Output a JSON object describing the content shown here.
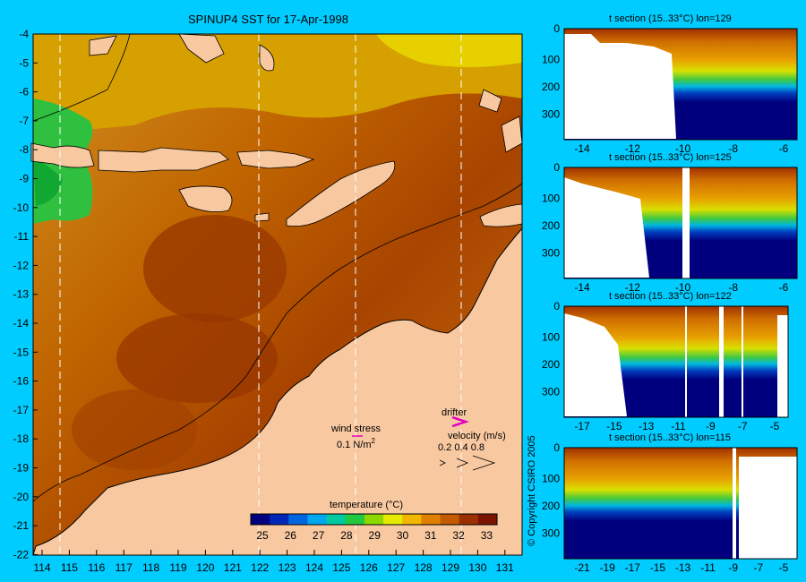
{
  "main_map": {
    "title": "SPINUP4 SST for 17-Apr-1998",
    "lat_ticks": [
      "-4",
      "-5",
      "-6",
      "-7",
      "-8",
      "-9",
      "-10",
      "-11",
      "-12",
      "-13",
      "-14",
      "-15",
      "-16",
      "-17",
      "-18",
      "-19",
      "-20",
      "-21",
      "-22"
    ],
    "lon_ticks": [
      "114",
      "115",
      "116",
      "117",
      "118",
      "119",
      "120",
      "121",
      "122",
      "123",
      "124",
      "125",
      "126",
      "127",
      "128",
      "129",
      "130",
      "131"
    ],
    "legend": {
      "wind_label": "wind stress",
      "wind_value": "0.1 N/m",
      "wind_exp": "2",
      "drifter_label": "drifter",
      "velocity_label": "velocity (m/s)",
      "velocity_values": "0.2  0.4  0.8"
    },
    "colorbar": {
      "label": "temperature (°C)",
      "ticks": [
        "25",
        "26",
        "27",
        "28",
        "29",
        "30",
        "31",
        "32",
        "33"
      ],
      "colors": [
        "#00007f",
        "#0026b8",
        "#0066e0",
        "#00a8f0",
        "#00c8a0",
        "#22c840",
        "#8cd800",
        "#e6ea00",
        "#f2b600",
        "#e08000",
        "#c45a00",
        "#9c3000",
        "#7a1400"
      ]
    }
  },
  "sections": [
    {
      "title": "t section (15..33°C) lon=129",
      "xticks": [
        "-14",
        "-12",
        "-10",
        "-8",
        "-6"
      ],
      "yticks": [
        "0",
        "100",
        "200",
        "300"
      ]
    },
    {
      "title": "t section (15..33°C) lon=125",
      "xticks": [
        "-14",
        "-12",
        "-10",
        "-8",
        "-6"
      ],
      "yticks": [
        "0",
        "100",
        "200",
        "300"
      ]
    },
    {
      "title": "t section (15..33°C) lon=122",
      "xticks": [
        "-17",
        "-15",
        "-13",
        "-11",
        "-9",
        "-7",
        "-5"
      ],
      "yticks": [
        "0",
        "100",
        "200",
        "300"
      ]
    },
    {
      "title": "t section (15..33°C) lon=115",
      "xticks": [
        "-21",
        "-19",
        "-17",
        "-15",
        "-13",
        "-11",
        "-9",
        "-7",
        "-5"
      ],
      "yticks": [
        "0",
        "100",
        "200",
        "300"
      ]
    }
  ],
  "copyright": "© Copyright CSIRO 2005",
  "colors": {
    "background": "#00ccff",
    "land": "#f8c8a0"
  }
}
